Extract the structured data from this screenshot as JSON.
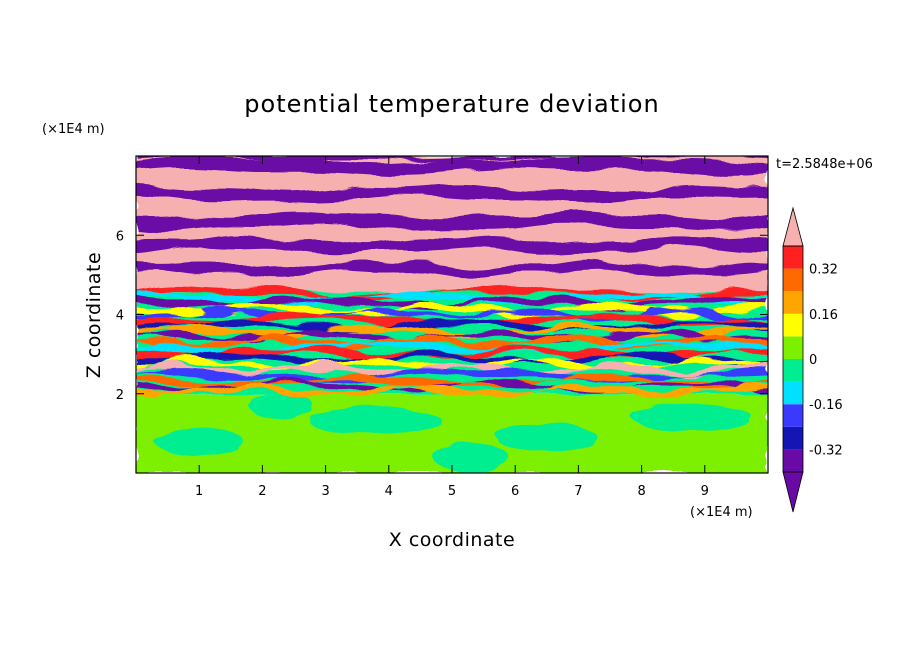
{
  "chart_data": {
    "type": "heatmap",
    "title": "potential temperature deviation",
    "xlabel": "X coordinate",
    "ylabel": "Z coordinate",
    "x_unit": "(×1E4 m)",
    "y_unit": "(×1E4 m)",
    "time_label": "t=2.5848e+06",
    "xlim": [
      0,
      10
    ],
    "ylim": [
      0,
      8
    ],
    "x_ticks": [
      "1",
      "2",
      "3",
      "4",
      "5",
      "6",
      "7",
      "8",
      "9"
    ],
    "y_ticks": [
      "2",
      "4",
      "6"
    ],
    "colorbar": {
      "levels": [
        -0.4,
        -0.32,
        -0.24,
        -0.16,
        -0.08,
        0,
        0.08,
        0.16,
        0.24,
        0.32,
        0.4
      ],
      "labels": [
        "0.32",
        "0.16",
        "0",
        "-0.16",
        "-0.32"
      ],
      "colors": [
        "#6a0aa6",
        "#1515b4",
        "#3a3aff",
        "#00e0ff",
        "#00ee90",
        "#7cf000",
        "#ffff00",
        "#ffa500",
        "#ff6a00",
        "#ff2020",
        "#f7b0b0"
      ],
      "extend": "both"
    },
    "regions": [
      {
        "z_range": [
          0,
          2
        ],
        "description": "mostly near-zero green (0 to 0.08) with 0 to -0.08 patches"
      },
      {
        "z_range": [
          2,
          4.6
        ],
        "description": "turbulent mixed layer with values spanning -0.4 to 0.4"
      },
      {
        "z_range": [
          4.6,
          8
        ],
        "description": "alternating horizontal bands of >0.4 (pink) and <-0.4 (purple)"
      }
    ]
  }
}
